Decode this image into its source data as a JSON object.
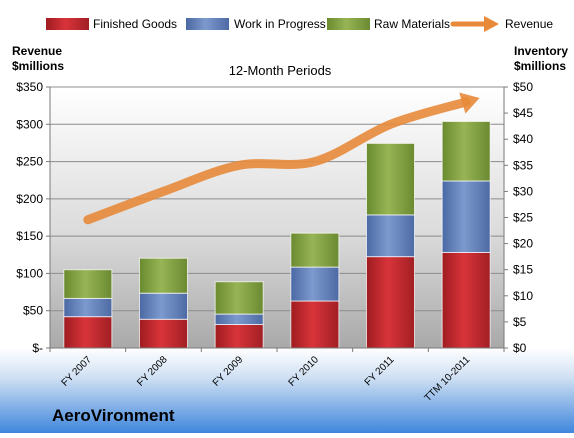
{
  "chart_data": {
    "type": "bar",
    "subtype": "stacked-bar-with-line",
    "title": "12-Month Periods",
    "company": "AeroVironment",
    "y_left_label": [
      "Revenue",
      "$millions"
    ],
    "y_right_label": [
      "Inventory",
      "$millions"
    ],
    "categories": [
      "FY 2007",
      "FY 2008",
      "FY 2009",
      "FY 2010",
      "FY 2011",
      "TTM 10-2011"
    ],
    "series": [
      {
        "name": "Finished Goods",
        "axis": "right",
        "type": "bar",
        "color": "#c0282e",
        "values": [
          6.0,
          5.5,
          4.5,
          9.0,
          17.5,
          18.3
        ]
      },
      {
        "name": "Work in Progress",
        "axis": "right",
        "type": "bar",
        "color": "#5878b0",
        "values": [
          3.5,
          5.0,
          2.0,
          6.5,
          8.0,
          13.7
        ]
      },
      {
        "name": "Raw Materials",
        "axis": "right",
        "type": "bar",
        "color": "#7d9c3e",
        "values": [
          5.5,
          6.7,
          6.2,
          6.5,
          13.7,
          11.4
        ]
      },
      {
        "name": "Revenue",
        "axis": "left",
        "type": "line",
        "color": "#e8893a",
        "values": [
          172,
          210,
          245,
          250,
          300,
          330
        ]
      }
    ],
    "y_left": {
      "min": 0,
      "max": 350,
      "ticks": [
        "$-",
        "$50",
        "$100",
        "$150",
        "$200",
        "$250",
        "$300",
        "$350"
      ]
    },
    "y_right": {
      "min": 0,
      "max": 50,
      "ticks": [
        "$0",
        "$5",
        "$10",
        "$15",
        "$20",
        "$25",
        "$30",
        "$35",
        "$40",
        "$45",
        "$50"
      ]
    },
    "grid": true,
    "legend_position": "top"
  }
}
